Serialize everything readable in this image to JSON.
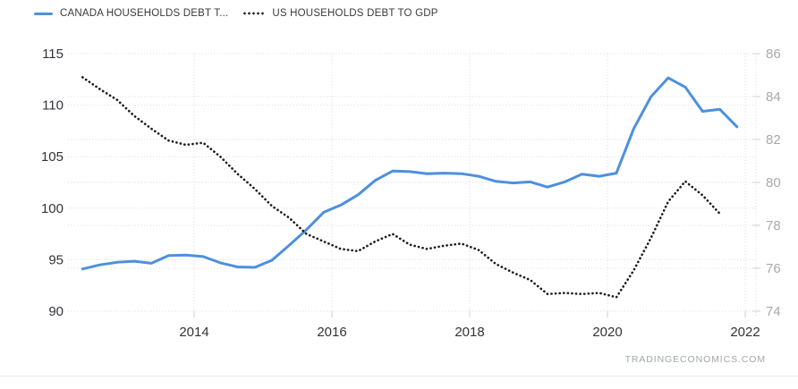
{
  "legend": {
    "items": [
      {
        "label": "CANADA HOUSEHOLDS DEBT T...",
        "color": "#4d90de",
        "style": "solid"
      },
      {
        "label": "US HOUSEHOLDS DEBT TO GDP",
        "color": "#1c1c1c",
        "style": "dotted"
      }
    ]
  },
  "watermark": "TRADINGECONOMICS.COM",
  "chart_data": {
    "type": "line",
    "title": "",
    "xlabel": "",
    "ylabel": "",
    "grid": "dotted",
    "legend_position": "top-left",
    "x_axis": {
      "ticks": [
        2014,
        2016,
        2018,
        2020,
        2022
      ],
      "range": [
        2012.17,
        2022.16
      ]
    },
    "left_axis": {
      "ticks": [
        115,
        110,
        105,
        100,
        95,
        90
      ],
      "range": [
        90,
        115
      ]
    },
    "right_axis": {
      "ticks": [
        86,
        84,
        82,
        80,
        78,
        76,
        74
      ],
      "range": [
        74,
        86
      ]
    },
    "colors": {
      "canada_line": "#4d90de",
      "us_line": "#1c1c1c",
      "grid": "#d9d9d9",
      "axis_text": "#32323a",
      "right_axis_text": "#a9a9a9",
      "tick_stub": "#cfcfcf"
    },
    "series": [
      {
        "name": "CANADA HOUSEHOLDS DEBT T...",
        "axis": "left",
        "color": "#4d90de",
        "style": "solid",
        "x_start": 2012.38,
        "x_step": 0.25,
        "values": [
          94.1,
          94.5,
          94.75,
          94.85,
          94.65,
          95.4,
          95.45,
          95.3,
          94.7,
          94.3,
          94.25,
          94.95,
          96.4,
          97.9,
          99.6,
          100.3,
          101.3,
          102.7,
          103.6,
          103.55,
          103.35,
          103.4,
          103.35,
          103.1,
          102.6,
          102.45,
          102.55,
          102.05,
          102.55,
          103.3,
          103.1,
          103.4,
          107.7,
          110.8,
          112.65,
          111.75,
          109.4,
          109.6,
          107.9
        ]
      },
      {
        "name": "US HOUSEHOLDS DEBT TO GDP",
        "axis": "right",
        "color": "#1c1c1c",
        "style": "dotted",
        "x_start": 2012.38,
        "x_step": 0.25,
        "values": [
          84.9,
          84.35,
          83.85,
          83.1,
          82.5,
          81.95,
          81.75,
          81.85,
          81.2,
          80.4,
          79.7,
          78.9,
          78.35,
          77.6,
          77.25,
          76.9,
          76.8,
          77.25,
          77.6,
          77.1,
          76.9,
          77.05,
          77.15,
          76.85,
          76.2,
          75.8,
          75.45,
          74.8,
          74.85,
          74.8,
          74.85,
          74.65,
          75.9,
          77.4,
          79.1,
          80.05,
          79.4,
          78.55
        ]
      }
    ]
  }
}
